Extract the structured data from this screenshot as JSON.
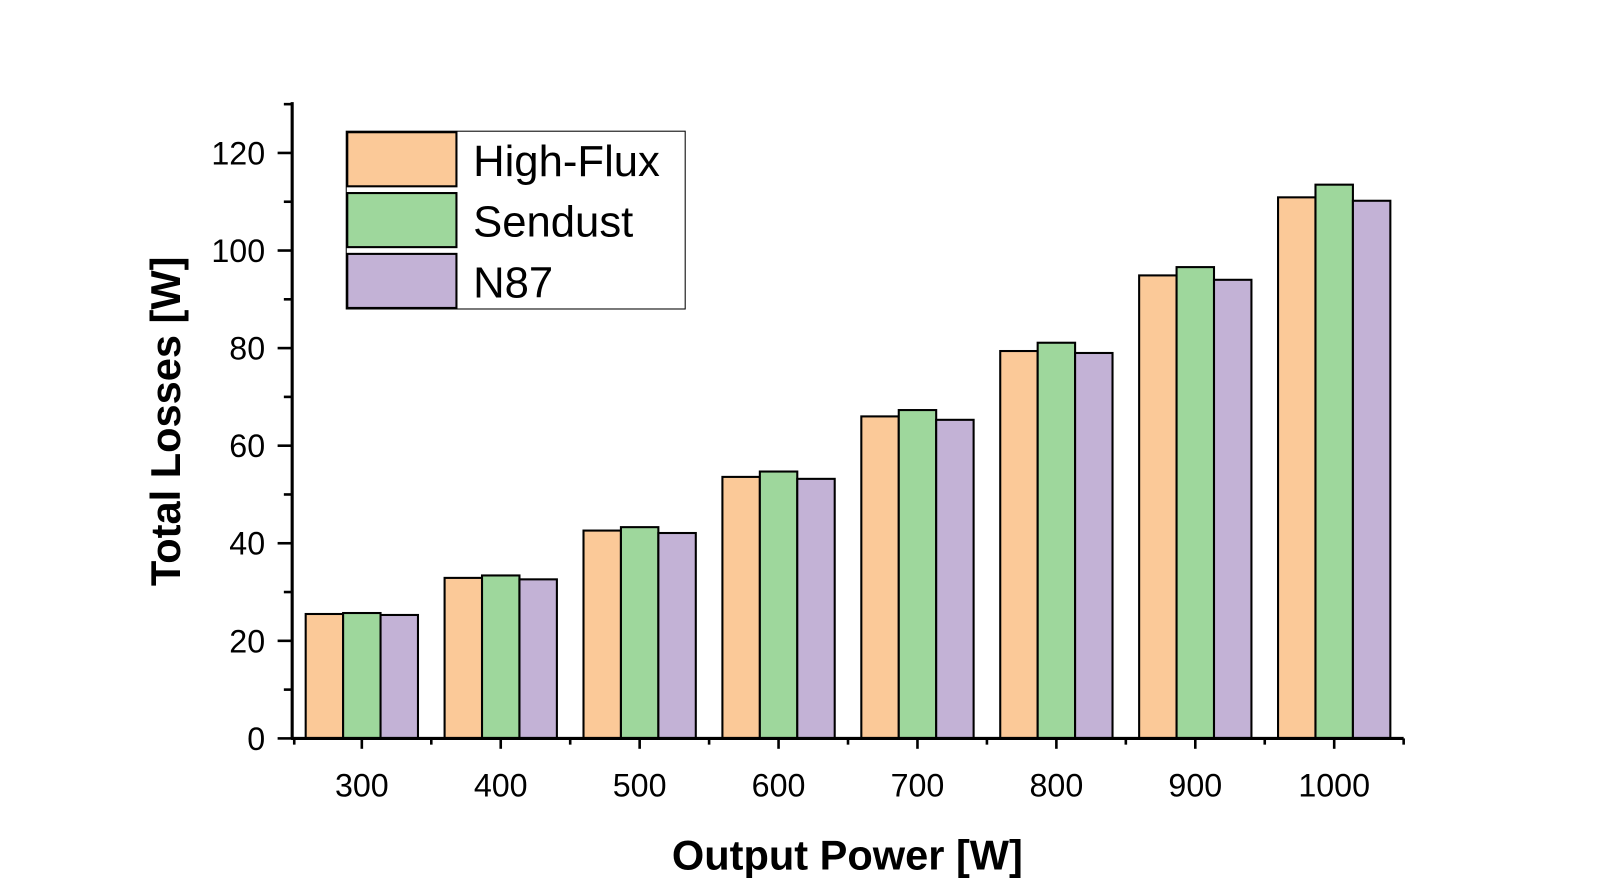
{
  "chart_data": {
    "type": "bar",
    "title": "",
    "xlabel": "Output Power [W]",
    "ylabel": "Total Losses [W]",
    "categories": [
      "300",
      "400",
      "500",
      "600",
      "700",
      "800",
      "900",
      "1000"
    ],
    "ylim": [
      0,
      130
    ],
    "yticks": [
      0,
      20,
      40,
      60,
      80,
      100,
      120
    ],
    "grid": false,
    "legend_position": "top-left",
    "series": [
      {
        "name": "High-Flux",
        "color": "#FBC998",
        "values": [
          25.5,
          32.9,
          42.6,
          53.6,
          66.0,
          79.4,
          94.9,
          110.9
        ]
      },
      {
        "name": "Sendust",
        "color": "#9ED79C",
        "values": [
          25.7,
          33.4,
          43.3,
          54.7,
          67.3,
          81.1,
          96.6,
          113.5
        ]
      },
      {
        "name": "N87",
        "color": "#C3B2D6",
        "values": [
          25.3,
          32.6,
          42.1,
          53.2,
          65.3,
          79.0,
          94.0,
          110.2
        ]
      }
    ]
  }
}
